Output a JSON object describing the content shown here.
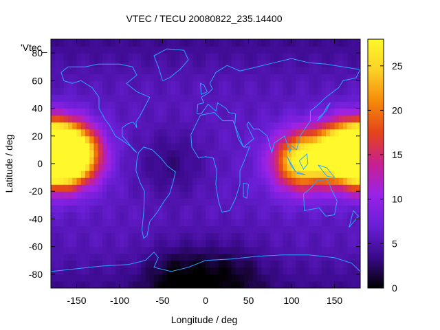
{
  "chart_data": {
    "type": "heatmap",
    "title": "VTEC / TECU 20080822_235.14400",
    "xlabel": "Longitude / deg",
    "ylabel": "Latitude / deg",
    "series_label": "'Vtec_",
    "xlim": [
      -180,
      180
    ],
    "ylim": [
      -90,
      90
    ],
    "xticks": [
      -150,
      -100,
      -50,
      0,
      50,
      100,
      150
    ],
    "yticks": [
      -80,
      -60,
      -40,
      -20,
      0,
      20,
      40,
      60,
      80
    ],
    "colorbar": {
      "range": [
        0,
        28
      ],
      "ticks": [
        0,
        5,
        10,
        15,
        20,
        25
      ],
      "colors": [
        "#000000",
        "#3a0a8c",
        "#6a1fd6",
        "#9a22e8",
        "#c8208f",
        "#e4441a",
        "#f58a0a",
        "#fbd128",
        "#fff82a"
      ]
    },
    "grid": false,
    "value_model": {
      "background_tecu": 5.5,
      "hotspots": [
        {
          "lon": -180,
          "lat": 5,
          "peak": 21
        },
        {
          "lon": -165,
          "lat": 8,
          "peak": 28
        },
        {
          "lon": -150,
          "lat": 6,
          "peak": 18
        },
        {
          "lon": 110,
          "lat": 2,
          "peak": 26
        },
        {
          "lon": 150,
          "lat": 8,
          "peak": 22
        },
        {
          "lon": 175,
          "lat": 10,
          "peak": 18
        }
      ],
      "lows": [
        {
          "lon": -40,
          "lat": 0,
          "depth": 3
        },
        {
          "lon": -30,
          "lat": -83,
          "depth": 4
        },
        {
          "lon": 30,
          "lat": -80,
          "depth": 3
        }
      ]
    }
  }
}
